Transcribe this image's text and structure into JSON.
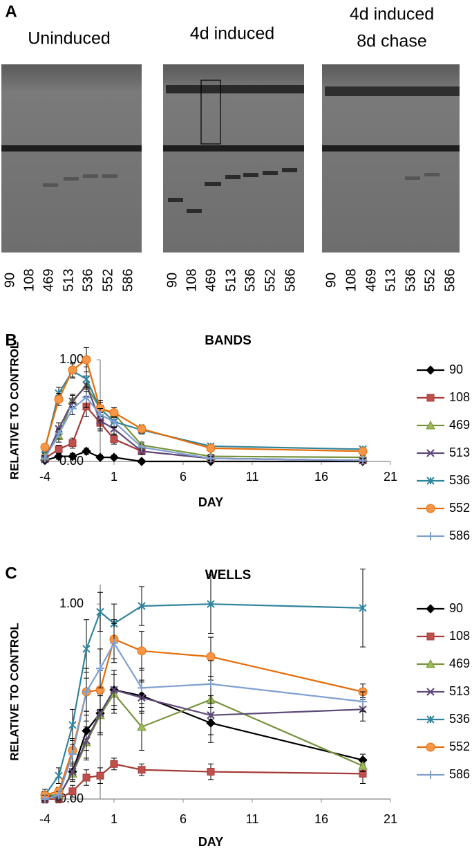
{
  "panel_a": {
    "label": "A",
    "blots": [
      {
        "title": [
          "Uninduced"
        ],
        "lanes": [
          "90",
          "108",
          "469",
          "513",
          "536",
          "552",
          "586"
        ]
      },
      {
        "title": [
          "4d induced"
        ],
        "lanes": [
          "90",
          "108",
          "469",
          "513",
          "536",
          "552",
          "586"
        ]
      },
      {
        "title": [
          "4d induced",
          "8d chase"
        ],
        "lanes": [
          "90",
          "108",
          "469",
          "513",
          "536",
          "552",
          "586"
        ]
      }
    ]
  },
  "chart_data": [
    {
      "type": "line",
      "label": "B",
      "title": "BANDS",
      "x_label": "DAY",
      "y_label": "RELATIVE TO CONTROL",
      "x": [
        -4,
        -3,
        -2,
        -1,
        0,
        1,
        3,
        8,
        19
      ],
      "xlim": [
        -4,
        21
      ],
      "xticks": [
        -4,
        1,
        6,
        11,
        16,
        21
      ],
      "ylim": [
        0,
        1
      ],
      "yticks": [
        {
          "value": 0,
          "label": "0.00"
        },
        {
          "value": 1,
          "label": "1.00"
        }
      ],
      "y_axis_crossing": 0,
      "legend": "right",
      "series": [
        {
          "name": "90",
          "color": "#000000",
          "marker": "diamond",
          "values": [
            0.01,
            0.05,
            0.05,
            0.1,
            0.04,
            0.04,
            0.0,
            0.0,
            0.0
          ],
          "errors": [
            0.02,
            0.03,
            0.03,
            0.03,
            0.02,
            0.02,
            0.01,
            0.01,
            0.01
          ]
        },
        {
          "name": "108",
          "color": "#a33a36",
          "marker": "square",
          "values": [
            0.03,
            0.12,
            0.18,
            0.54,
            0.38,
            0.22,
            0.1,
            0.03,
            0.01
          ],
          "errors": [
            0.03,
            0.04,
            0.05,
            0.1,
            0.08,
            0.05,
            0.03,
            0.02,
            0.01
          ]
        },
        {
          "name": "469",
          "color": "#77933c",
          "marker": "triangle",
          "values": [
            0.05,
            0.25,
            0.6,
            0.74,
            0.52,
            0.47,
            0.16,
            0.05,
            0.04
          ],
          "errors": [
            0.03,
            0.06,
            0.06,
            0.1,
            0.08,
            0.06,
            0.03,
            0.02,
            0.02
          ]
        },
        {
          "name": "513",
          "color": "#5f497a",
          "marker": "x",
          "values": [
            0.02,
            0.32,
            0.59,
            0.75,
            0.4,
            0.32,
            0.1,
            0.03,
            0.01
          ],
          "errors": [
            0.03,
            0.06,
            0.06,
            0.22,
            0.08,
            0.06,
            0.03,
            0.02,
            0.02
          ]
        },
        {
          "name": "536",
          "color": "#31849b",
          "marker": "asterisk",
          "values": [
            0.12,
            0.67,
            0.89,
            0.81,
            0.52,
            0.39,
            0.31,
            0.15,
            0.12
          ],
          "errors": [
            0.03,
            0.06,
            0.07,
            0.12,
            0.08,
            0.06,
            0.04,
            0.02,
            0.02
          ]
        },
        {
          "name": "552",
          "color": "#e46c0a",
          "marker": "circle",
          "values": [
            0.14,
            0.61,
            0.9,
            1.0,
            0.52,
            0.48,
            0.32,
            0.13,
            0.1
          ],
          "errors": [
            0.03,
            0.06,
            0.07,
            0.12,
            0.06,
            0.05,
            0.04,
            0.02,
            0.02
          ]
        },
        {
          "name": "586",
          "color": "#7f9fcf",
          "marker": "plus",
          "values": [
            0.03,
            0.27,
            0.52,
            0.63,
            0.46,
            0.39,
            0.14,
            0.03,
            0.01
          ],
          "errors": [
            0.03,
            0.05,
            0.06,
            0.1,
            0.06,
            0.05,
            0.03,
            0.02,
            0.02
          ]
        }
      ]
    },
    {
      "type": "line",
      "label": "C",
      "title": "WELLS",
      "x_label": "DAY",
      "y_label": "RELATIVE TO CONTROL",
      "x": [
        -4,
        -3,
        -2,
        -1,
        0,
        1,
        3,
        8,
        19
      ],
      "xlim": [
        -4,
        21
      ],
      "xticks": [
        -4,
        1,
        6,
        11,
        16,
        21
      ],
      "ylim": [
        0,
        1.1
      ],
      "yticks": [
        {
          "value": 0,
          "label": "0.00"
        },
        {
          "value": 1,
          "label": "1.00"
        }
      ],
      "y_axis_crossing": 0,
      "legend": "right",
      "series": [
        {
          "name": "90",
          "color": "#000000",
          "marker": "diamond",
          "values": [
            0.02,
            0.01,
            0.14,
            0.35,
            0.44,
            0.56,
            0.53,
            0.39,
            0.2
          ],
          "errors": [
            0.02,
            0.02,
            0.04,
            0.1,
            0.1,
            0.08,
            0.08,
            0.1,
            0.03
          ]
        },
        {
          "name": "108",
          "color": "#a33a36",
          "marker": "square",
          "values": [
            0.0,
            0.0,
            0.04,
            0.11,
            0.12,
            0.18,
            0.15,
            0.14,
            0.13
          ],
          "errors": [
            0.02,
            0.02,
            0.03,
            0.04,
            0.04,
            0.03,
            0.03,
            0.04,
            0.05
          ]
        },
        {
          "name": "469",
          "color": "#77933c",
          "marker": "triangle",
          "values": [
            0.02,
            0.02,
            0.13,
            0.29,
            0.43,
            0.54,
            0.37,
            0.51,
            0.17
          ],
          "errors": [
            0.02,
            0.02,
            0.04,
            0.08,
            0.1,
            0.1,
            0.12,
            0.1,
            0.03
          ]
        },
        {
          "name": "513",
          "color": "#5f497a",
          "marker": "x",
          "values": [
            0.01,
            0.01,
            0.14,
            0.3,
            0.44,
            0.56,
            0.52,
            0.43,
            0.46
          ],
          "errors": [
            0.02,
            0.02,
            0.04,
            0.1,
            0.1,
            0.1,
            0.08,
            0.1,
            0.06
          ]
        },
        {
          "name": "536",
          "color": "#31849b",
          "marker": "asterisk",
          "values": [
            0.02,
            0.12,
            0.38,
            0.77,
            0.96,
            0.9,
            0.99,
            1.0,
            0.98
          ],
          "errors": [
            0.03,
            0.04,
            0.08,
            0.15,
            0.1,
            0.1,
            0.1,
            0.15,
            0.2
          ]
        },
        {
          "name": "552",
          "color": "#e46c0a",
          "marker": "circle",
          "values": [
            0.02,
            0.04,
            0.25,
            0.55,
            0.56,
            0.82,
            0.76,
            0.73,
            0.55
          ],
          "errors": [
            0.02,
            0.02,
            0.06,
            0.12,
            0.1,
            0.1,
            0.1,
            0.1,
            0.04
          ]
        },
        {
          "name": "586",
          "color": "#7f9fcf",
          "marker": "plus",
          "values": [
            0.0,
            0.02,
            0.23,
            0.55,
            0.67,
            0.8,
            0.57,
            0.59,
            0.5
          ],
          "errors": [
            0.02,
            0.02,
            0.05,
            0.1,
            0.1,
            0.1,
            0.1,
            0.12,
            0.05
          ]
        }
      ]
    }
  ]
}
